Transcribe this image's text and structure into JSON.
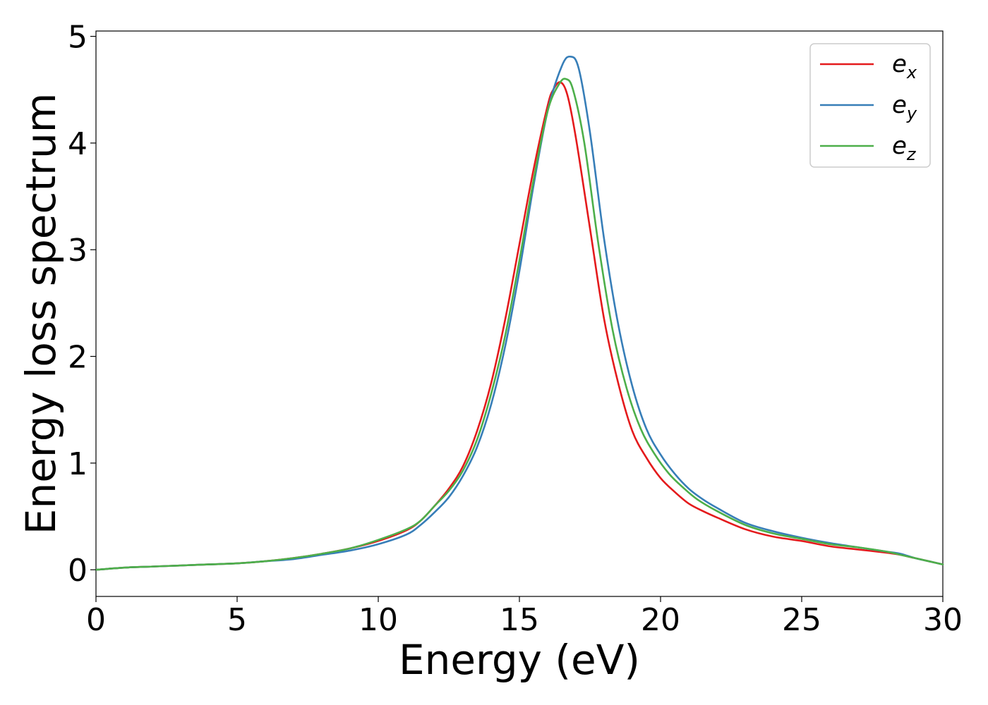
{
  "chart_data": {
    "type": "line",
    "title": "",
    "xlabel": "Energy (eV)",
    "ylabel": "Energy loss spectrum",
    "xlim": [
      0,
      30
    ],
    "ylim": [
      -0.25,
      5.05
    ],
    "xticks": [
      0,
      5,
      10,
      15,
      20,
      25,
      30
    ],
    "yticks": [
      0,
      1,
      2,
      3,
      4,
      5
    ],
    "grid": false,
    "legend_position": "top-right",
    "series": [
      {
        "name": "e_x",
        "label_base": "e",
        "label_sub": "x",
        "color": "#e41a1c",
        "x": [
          0,
          1,
          2,
          3,
          4,
          5,
          6,
          7,
          8,
          9,
          10,
          11,
          11.5,
          12,
          12.5,
          13,
          13.5,
          14,
          14.5,
          15,
          15.5,
          16,
          16.2,
          16.45,
          16.7,
          17,
          17.5,
          18,
          18.5,
          19,
          19.5,
          20,
          20.5,
          21,
          21.5,
          22,
          23,
          24,
          25,
          26,
          27,
          28,
          28.5,
          29,
          29.5,
          30
        ],
        "y": [
          0.0,
          0.02,
          0.03,
          0.04,
          0.05,
          0.06,
          0.08,
          0.11,
          0.15,
          0.2,
          0.27,
          0.37,
          0.46,
          0.6,
          0.76,
          0.97,
          1.3,
          1.75,
          2.35,
          3.05,
          3.75,
          4.35,
          4.5,
          4.57,
          4.45,
          4.05,
          3.2,
          2.35,
          1.75,
          1.3,
          1.05,
          0.86,
          0.73,
          0.62,
          0.55,
          0.49,
          0.38,
          0.31,
          0.27,
          0.22,
          0.19,
          0.16,
          0.14,
          0.11,
          0.08,
          0.05
        ]
      },
      {
        "name": "e_y",
        "label_base": "e",
        "label_sub": "y",
        "color": "#377eb8",
        "x": [
          0,
          1,
          2,
          3,
          4,
          5,
          6,
          7,
          8,
          9,
          10,
          11,
          11.5,
          12,
          12.5,
          13,
          13.5,
          14,
          14.5,
          15,
          15.5,
          16,
          16.5,
          16.8,
          17.1,
          17.5,
          18,
          18.5,
          19,
          19.5,
          20,
          20.5,
          21,
          21.5,
          22,
          23,
          24,
          25,
          26,
          27,
          28,
          28.5,
          29,
          29.5,
          30
        ],
        "y": [
          0.0,
          0.02,
          0.03,
          0.04,
          0.05,
          0.06,
          0.08,
          0.1,
          0.14,
          0.18,
          0.24,
          0.33,
          0.42,
          0.54,
          0.68,
          0.88,
          1.15,
          1.55,
          2.1,
          2.8,
          3.6,
          4.3,
          4.72,
          4.81,
          4.7,
          4.1,
          3.1,
          2.3,
          1.72,
          1.32,
          1.08,
          0.9,
          0.76,
          0.66,
          0.58,
          0.44,
          0.36,
          0.3,
          0.25,
          0.21,
          0.17,
          0.15,
          0.11,
          0.08,
          0.05
        ]
      },
      {
        "name": "e_z",
        "label_base": "e",
        "label_sub": "z",
        "color": "#4daf4a",
        "x": [
          0,
          1,
          2,
          3,
          4,
          5,
          6,
          7,
          8,
          9,
          10,
          11,
          11.5,
          12,
          12.5,
          13,
          13.5,
          14,
          14.5,
          15,
          15.5,
          16,
          16.4,
          16.65,
          16.9,
          17.3,
          17.8,
          18.3,
          18.8,
          19.3,
          19.8,
          20.3,
          20.8,
          21.3,
          22,
          23,
          24,
          25,
          26,
          27,
          28,
          28.5,
          29,
          29.5,
          30
        ],
        "y": [
          0.0,
          0.02,
          0.03,
          0.04,
          0.05,
          0.06,
          0.08,
          0.11,
          0.15,
          0.2,
          0.28,
          0.38,
          0.46,
          0.6,
          0.74,
          0.93,
          1.22,
          1.65,
          2.2,
          2.9,
          3.65,
          4.3,
          4.55,
          4.6,
          4.5,
          4.0,
          3.05,
          2.25,
          1.7,
          1.32,
          1.08,
          0.9,
          0.77,
          0.66,
          0.55,
          0.42,
          0.34,
          0.29,
          0.24,
          0.21,
          0.17,
          0.14,
          0.11,
          0.08,
          0.05
        ]
      }
    ]
  }
}
